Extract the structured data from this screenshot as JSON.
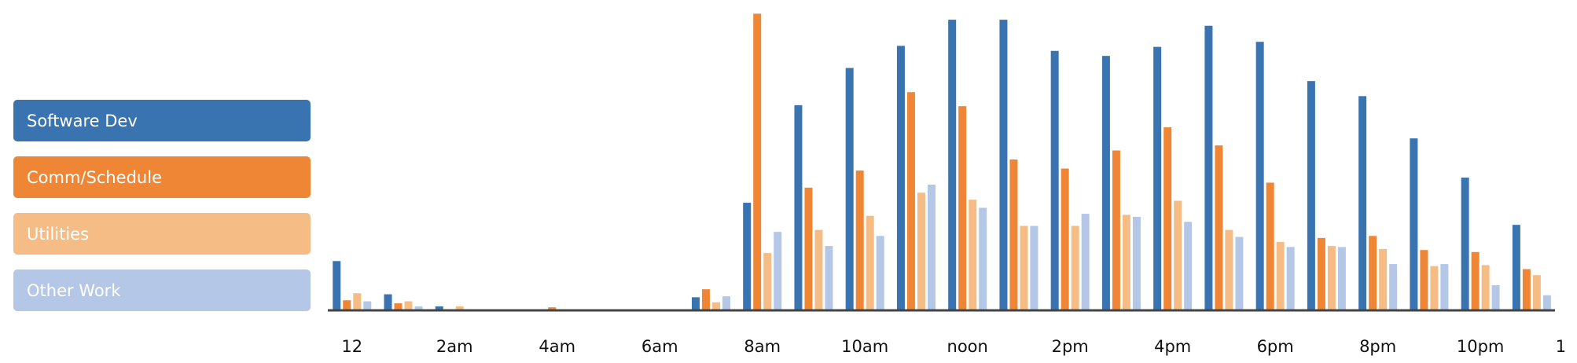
{
  "chart_data": {
    "type": "bar",
    "categories": [
      "12",
      null,
      "2am",
      null,
      "4am",
      null,
      "6am",
      null,
      "8am",
      null,
      "10am",
      null,
      "noon",
      null,
      "2pm",
      null,
      "4pm",
      null,
      "6pm",
      null,
      "8pm",
      null,
      "10pm",
      null
    ],
    "x_end_label": "1",
    "series": [
      {
        "name": "Software Dev",
        "color": "#3a74b0",
        "values": [
          49,
          16,
          4,
          0,
          0,
          0,
          0,
          13,
          107,
          204,
          241,
          263,
          289,
          289,
          258,
          253,
          262,
          283,
          267,
          228,
          213,
          171,
          132,
          85
        ]
      },
      {
        "name": "Comm/Schedule",
        "color": "#ef8636",
        "values": [
          10,
          7,
          0,
          0,
          3,
          0,
          0,
          21,
          295,
          122,
          139,
          217,
          203,
          150,
          141,
          159,
          182,
          164,
          127,
          72,
          74,
          60,
          58,
          41
        ]
      },
      {
        "name": "Utilities",
        "color": "#f5bd85",
        "values": [
          17,
          9,
          4,
          0,
          0,
          0,
          0,
          8,
          57,
          80,
          94,
          117,
          110,
          84,
          84,
          95,
          109,
          80,
          68,
          64,
          61,
          44,
          45,
          35
        ]
      },
      {
        "name": "Other Work",
        "color": "#b4c7e7",
        "values": [
          9,
          4,
          0,
          0,
          0,
          0,
          0,
          14,
          78,
          64,
          74,
          125,
          102,
          84,
          96,
          93,
          88,
          73,
          63,
          63,
          46,
          46,
          25,
          15
        ]
      }
    ],
    "ylim": [
      0,
      300
    ]
  }
}
